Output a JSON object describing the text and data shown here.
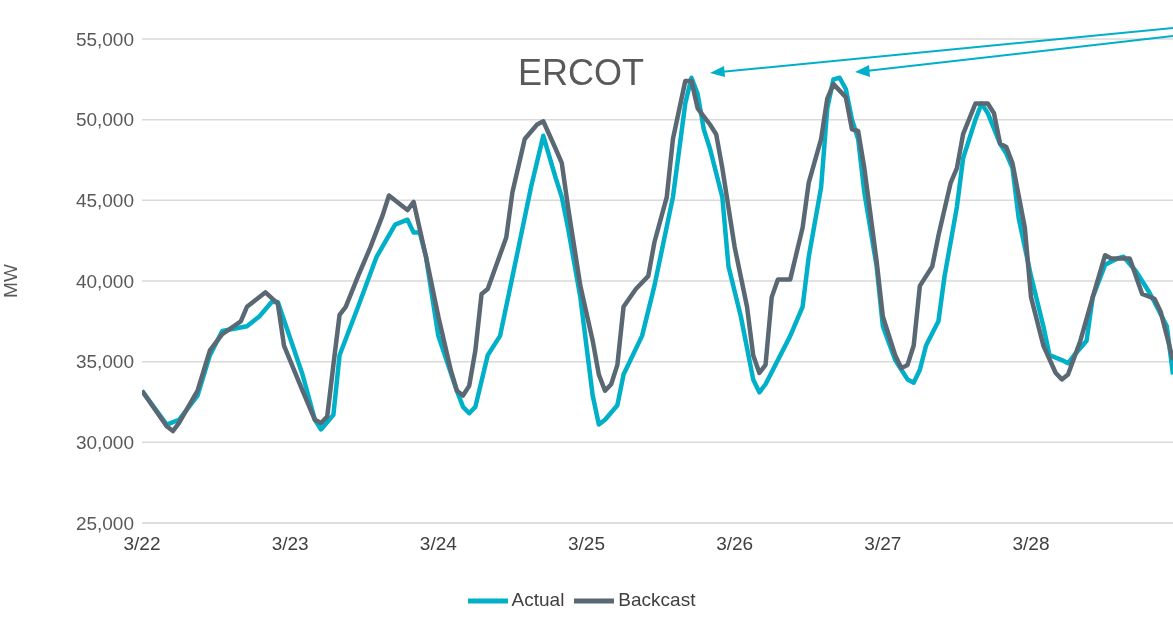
{
  "chart_data": {
    "type": "line",
    "ylabel": "MW",
    "annotations": [
      "ERCOT"
    ],
    "xlim": [
      "--03-22T00:00",
      "--03-28T23:00"
    ],
    "xticks": [
      {
        "value": "--03-22T00:00",
        "label": "3/22"
      },
      {
        "value": "--03-23T00:00",
        "label": "3/23"
      },
      {
        "value": "--03-24T00:00",
        "label": "3/24"
      },
      {
        "value": "--03-25T00:00",
        "label": "3/25"
      },
      {
        "value": "--03-26T00:00",
        "label": "3/26"
      },
      {
        "value": "--03-27T00:00",
        "label": "3/27"
      },
      {
        "value": "--03-28T00:00",
        "label": "3/28"
      }
    ],
    "ylim": [
      25000,
      55000
    ],
    "yticks": [
      {
        "value": 25000,
        "label": "25,000"
      },
      {
        "value": 30000,
        "label": "30,000"
      },
      {
        "value": 35000,
        "label": "35,000"
      },
      {
        "value": 40000,
        "label": "40,000"
      },
      {
        "value": 45000,
        "label": "45,000"
      },
      {
        "value": 50000,
        "label": "50,000"
      },
      {
        "value": 55000,
        "label": "55,000"
      }
    ],
    "grid": "y",
    "legend": "bottom",
    "marker": "none",
    "line_style": "solid",
    "series": [
      {
        "name": "Actual",
        "color": "#00afc8",
        "x": [
          "--03-22T00:00",
          "--03-22T04:00",
          "--03-22T06:00",
          "--03-22T09:00",
          "--03-22T11:00",
          "--03-22T13:00",
          "--03-22T17:00",
          "--03-22T19:00",
          "--03-22T21:00",
          "--03-22T22:00",
          "--03-23T02:00",
          "--03-23T04:00",
          "--03-23T05:00",
          "--03-23T07:00",
          "--03-23T08:00",
          "--03-23T11:00",
          "--03-23T14:00",
          "--03-23T17:00",
          "--03-23T19:00",
          "--03-23T20:00",
          "--03-23T21:00",
          "--03-23T22:00",
          "--03-24T00:00",
          "--03-24T03:00",
          "--03-24T04:00",
          "--03-24T05:00",
          "--03-24T06:00",
          "--03-24T08:00",
          "--03-24T10:00",
          "--03-24T13:00",
          "--03-24T15:00",
          "--03-24T17:00",
          "--03-24T19:00",
          "--03-24T20:00",
          "--03-24T21:00",
          "--03-24T23:00",
          "--03-25T01:00",
          "--03-25T02:00",
          "--03-25T03:00",
          "--03-25T05:00",
          "--03-25T06:00",
          "--03-25T09:00",
          "--03-25T11:00",
          "--03-25T14:00",
          "--03-25T16:00",
          "--03-25T17:00",
          "--03-25T18:00",
          "--03-25T19:00",
          "--03-25T20:00",
          "--03-25T22:00",
          "--03-25T23:00",
          "--03-26T01:00",
          "--03-26T03:00",
          "--03-26T04:00",
          "--03-26T05:00",
          "--03-26T09:00",
          "--03-26T11:00",
          "--03-26T12:00",
          "--03-26T14:00",
          "--03-26T15:00",
          "--03-26T16:00",
          "--03-26T17:00",
          "--03-26T18:00",
          "--03-26T19:00",
          "--03-26T20:00",
          "--03-26T21:00",
          "--03-26T23:00",
          "--03-27T00:00",
          "--03-27T02:00",
          "--03-27T04:00",
          "--03-27T05:00",
          "--03-27T06:00",
          "--03-27T07:00",
          "--03-27T09:00",
          "--03-27T10:00",
          "--03-27T12:00",
          "--03-27T13:00",
          "--03-27T15:00",
          "--03-27T16:00",
          "--03-27T17:00",
          "--03-27T19:00",
          "--03-27T20:00",
          "--03-27T21:00",
          "--03-27T22:00",
          "--03-28T00:00",
          "--03-28T02:00",
          "--03-28T03:00",
          "--03-28T05:00",
          "--03-28T06:00",
          "--03-28T07:00",
          "--03-28T09:00",
          "--03-28T10:00",
          "--03-28T12:00",
          "--03-28T14:00",
          "--03-28T15:00",
          "--03-28T17:00",
          "--03-28T19:00",
          "--03-28T20:00",
          "--03-28T22:00",
          "--03-28T23:00"
        ],
        "values": [
          33200,
          31100,
          31400,
          32900,
          35400,
          36900,
          37200,
          37800,
          38700,
          38700,
          34200,
          31400,
          30800,
          31700,
          35400,
          38400,
          41500,
          43500,
          43800,
          43000,
          43000,
          41500,
          36600,
          33200,
          32200,
          31800,
          32200,
          35400,
          36600,
          42100,
          45800,
          49000,
          46400,
          45200,
          43300,
          39000,
          32900,
          31100,
          31400,
          32300,
          34200,
          36600,
          39700,
          45200,
          51000,
          52600,
          51600,
          49400,
          48200,
          45200,
          40900,
          37800,
          33900,
          33100,
          33600,
          36600,
          38400,
          41500,
          45800,
          50700,
          52500,
          52600,
          51900,
          50000,
          48800,
          45500,
          40900,
          37200,
          35100,
          33900,
          33700,
          34500,
          36000,
          37500,
          40300,
          44600,
          47600,
          50000,
          51000,
          50400,
          48500,
          47900,
          47000,
          43900,
          40300,
          37200,
          35400,
          35100,
          34900,
          35400,
          36300,
          39000,
          41000,
          41400,
          41500,
          40600,
          39400,
          38700,
          37200,
          34200
        ]
      },
      {
        "name": "Backcast",
        "color": "#5a6873",
        "x": [
          "--03-22T00:00",
          "--03-22T04:00",
          "--03-22T05:00",
          "--03-22T06:00",
          "--03-22T09:00",
          "--03-22T11:00",
          "--03-22T13:00",
          "--03-22T16:00",
          "--03-22T17:00",
          "--03-22T18:00",
          "--03-22T20:00",
          "--03-22T22:00",
          "--03-22T23:00",
          "--03-23T02:00",
          "--03-23T04:00",
          "--03-23T05:00",
          "--03-23T06:00",
          "--03-23T07:00",
          "--03-23T08:00",
          "--03-23T09:00",
          "--03-23T11:00",
          "--03-23T13:00",
          "--03-23T15:00",
          "--03-23T16:00",
          "--03-23T18:00",
          "--03-23T19:00",
          "--03-23T20:00",
          "--03-23T22:00",
          "--03-24T00:00",
          "--03-24T02:00",
          "--03-24T03:00",
          "--03-24T04:00",
          "--03-24T05:00",
          "--03-24T06:00",
          "--03-24T07:00",
          "--03-24T08:00",
          "--03-24T11:00",
          "--03-24T12:00",
          "--03-24T14:00",
          "--03-24T16:00",
          "--03-24T17:00",
          "--03-24T19:00",
          "--03-24T20:00",
          "--03-24T21:00",
          "--03-24T23:00",
          "--03-25T01:00",
          "--03-25T02:00",
          "--03-25T03:00",
          "--03-25T04:00",
          "--03-25T05:00",
          "--03-25T06:00",
          "--03-25T08:00",
          "--03-25T10:00",
          "--03-25T11:00",
          "--03-25T13:00",
          "--03-25T14:00",
          "--03-25T16:00",
          "--03-25T17:00",
          "--03-25T18:00",
          "--03-25T20:00",
          "--03-25T21:00",
          "--03-25T22:00",
          "--03-26T00:00",
          "--03-26T02:00",
          "--03-26T03:00",
          "--03-26T04:00",
          "--03-26T05:00",
          "--03-26T06:00",
          "--03-26T07:00",
          "--03-26T09:00",
          "--03-26T11:00",
          "--03-26T12:00",
          "--03-26T14:00",
          "--03-26T15:00",
          "--03-26T16:00",
          "--03-26T18:00",
          "--03-26T19:00",
          "--03-26T20:00",
          "--03-26T21:00",
          "--03-26T23:00",
          "--03-27T00:00",
          "--03-27T02:00",
          "--03-27T03:00",
          "--03-27T04:00",
          "--03-27T05:00",
          "--03-27T06:00",
          "--03-27T08:00",
          "--03-27T09:00",
          "--03-27T11:00",
          "--03-27T12:00",
          "--03-27T13:00",
          "--03-27T15:00",
          "--03-27T17:00",
          "--03-27T18:00",
          "--03-27T19:00",
          "--03-27T20:00",
          "--03-27T21:00",
          "--03-27T23:00",
          "--03-28T00:00",
          "--03-28T02:00",
          "--03-28T04:00",
          "--03-28T05:00",
          "--03-28T06:00",
          "--03-28T08:00",
          "--03-28T10:00",
          "--03-28T12:00",
          "--03-28T13:00",
          "--03-28T14:00",
          "--03-28T16:00",
          "--03-28T17:00",
          "--03-28T18:00",
          "--03-28T20:00",
          "--03-28T21:00",
          "--03-28T23:00"
        ],
        "values": [
          33200,
          31000,
          30700,
          31200,
          33200,
          35700,
          36700,
          37500,
          38400,
          38700,
          39300,
          38600,
          36000,
          33200,
          31400,
          31200,
          31600,
          34800,
          37900,
          38400,
          40300,
          42100,
          44100,
          45300,
          44700,
          44400,
          44900,
          41500,
          37800,
          34500,
          33200,
          32900,
          33500,
          35700,
          39200,
          39500,
          42700,
          45500,
          48800,
          49700,
          49900,
          48200,
          47300,
          44600,
          39700,
          36300,
          34200,
          33200,
          33600,
          34800,
          38400,
          39500,
          40300,
          42400,
          45200,
          48800,
          52400,
          52400,
          50700,
          49700,
          49100,
          47000,
          42100,
          38400,
          35400,
          34300,
          34800,
          39000,
          40100,
          40100,
          43300,
          46100,
          48800,
          51300,
          52200,
          51400,
          49400,
          49300,
          47000,
          41200,
          37800,
          35400,
          34600,
          34800,
          36000,
          39700,
          40900,
          42800,
          46100,
          47000,
          49100,
          51000,
          51000,
          50400,
          48500,
          48300,
          47300,
          43300,
          39000,
          36000,
          34300,
          33900,
          34200,
          36300,
          39000,
          41600,
          41400,
          41400,
          41400,
          40300,
          39200,
          38900,
          38100,
          35100
        ]
      }
    ]
  }
}
